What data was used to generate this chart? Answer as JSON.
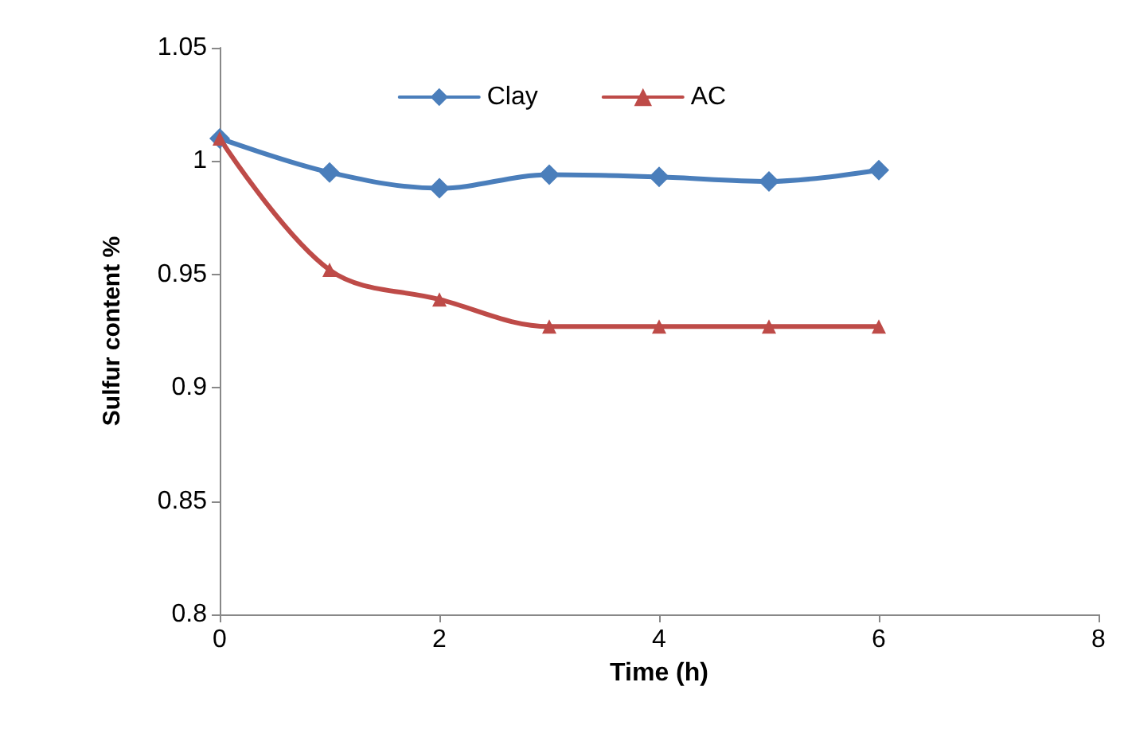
{
  "chart_data": {
    "type": "line",
    "xlabel": "Time (h)",
    "ylabel": "Sulfur content %",
    "xlim": [
      0,
      8
    ],
    "xticks": [
      0,
      2,
      4,
      6,
      8
    ],
    "ylim": [
      0.8,
      1.05
    ],
    "yticks": [
      0.8,
      0.85,
      0.9,
      0.95,
      1,
      1.05
    ],
    "x": [
      0,
      1,
      2,
      3,
      4,
      5,
      6
    ],
    "series": [
      {
        "name": "Clay",
        "color": "#4a7ebb",
        "marker": "diamond",
        "values": [
          1.01,
          0.995,
          0.988,
          0.994,
          0.993,
          0.991,
          0.996
        ]
      },
      {
        "name": "AC",
        "color": "#be4b48",
        "marker": "triangle",
        "values": [
          1.01,
          0.952,
          0.939,
          0.927,
          0.927,
          0.927,
          0.927
        ]
      }
    ],
    "grid": false,
    "legend": "top",
    "line_style": "solid"
  }
}
